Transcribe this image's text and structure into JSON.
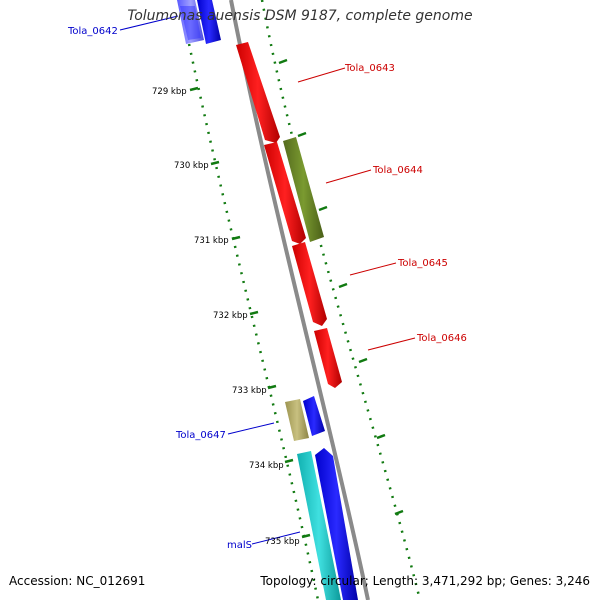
{
  "title": "Tolumonas auensis DSM 9187, complete genome",
  "footer": {
    "accession": "Accession: NC_012691",
    "summary": "Topology: circular; Length: 3,471,292 bp; Genes: 3,246"
  },
  "ticks": [
    {
      "label": "729 kbp"
    },
    {
      "label": "730 kbp"
    },
    {
      "label": "731 kbp"
    },
    {
      "label": "732 kbp"
    },
    {
      "label": "733 kbp"
    },
    {
      "label": "734 kbp"
    },
    {
      "label": "735 kbp"
    }
  ],
  "genes": [
    {
      "id": "Tola_0642",
      "label": "Tola_0642",
      "color": "#0000cc"
    },
    {
      "id": "Tola_0643",
      "label": "Tola_0643",
      "color": "#cc0000"
    },
    {
      "id": "Tola_0644",
      "label": "Tola_0644",
      "color": "#cc0000"
    },
    {
      "id": "Tola_0645",
      "label": "Tola_0645",
      "color": "#cc0000"
    },
    {
      "id": "Tola_0646",
      "label": "Tola_0646",
      "color": "#cc0000"
    },
    {
      "id": "Tola_0647",
      "label": "Tola_0647",
      "color": "#0000cc"
    },
    {
      "id": "malS",
      "label": "malS",
      "color": "#0000cc"
    }
  ],
  "colors": {
    "backbone": "#8a8a8a",
    "gc_skew_dots": "#117a11",
    "red_feature": "#ff0000",
    "olive_feature": "#6e8c2a",
    "khaki_feature": "#b8b070",
    "blue_feature": "#0000ff",
    "cyan_feature": "#20c8c8",
    "light_blue_feature": "#7070ff",
    "label_red": "#cc0000",
    "label_blue": "#0000cc"
  }
}
